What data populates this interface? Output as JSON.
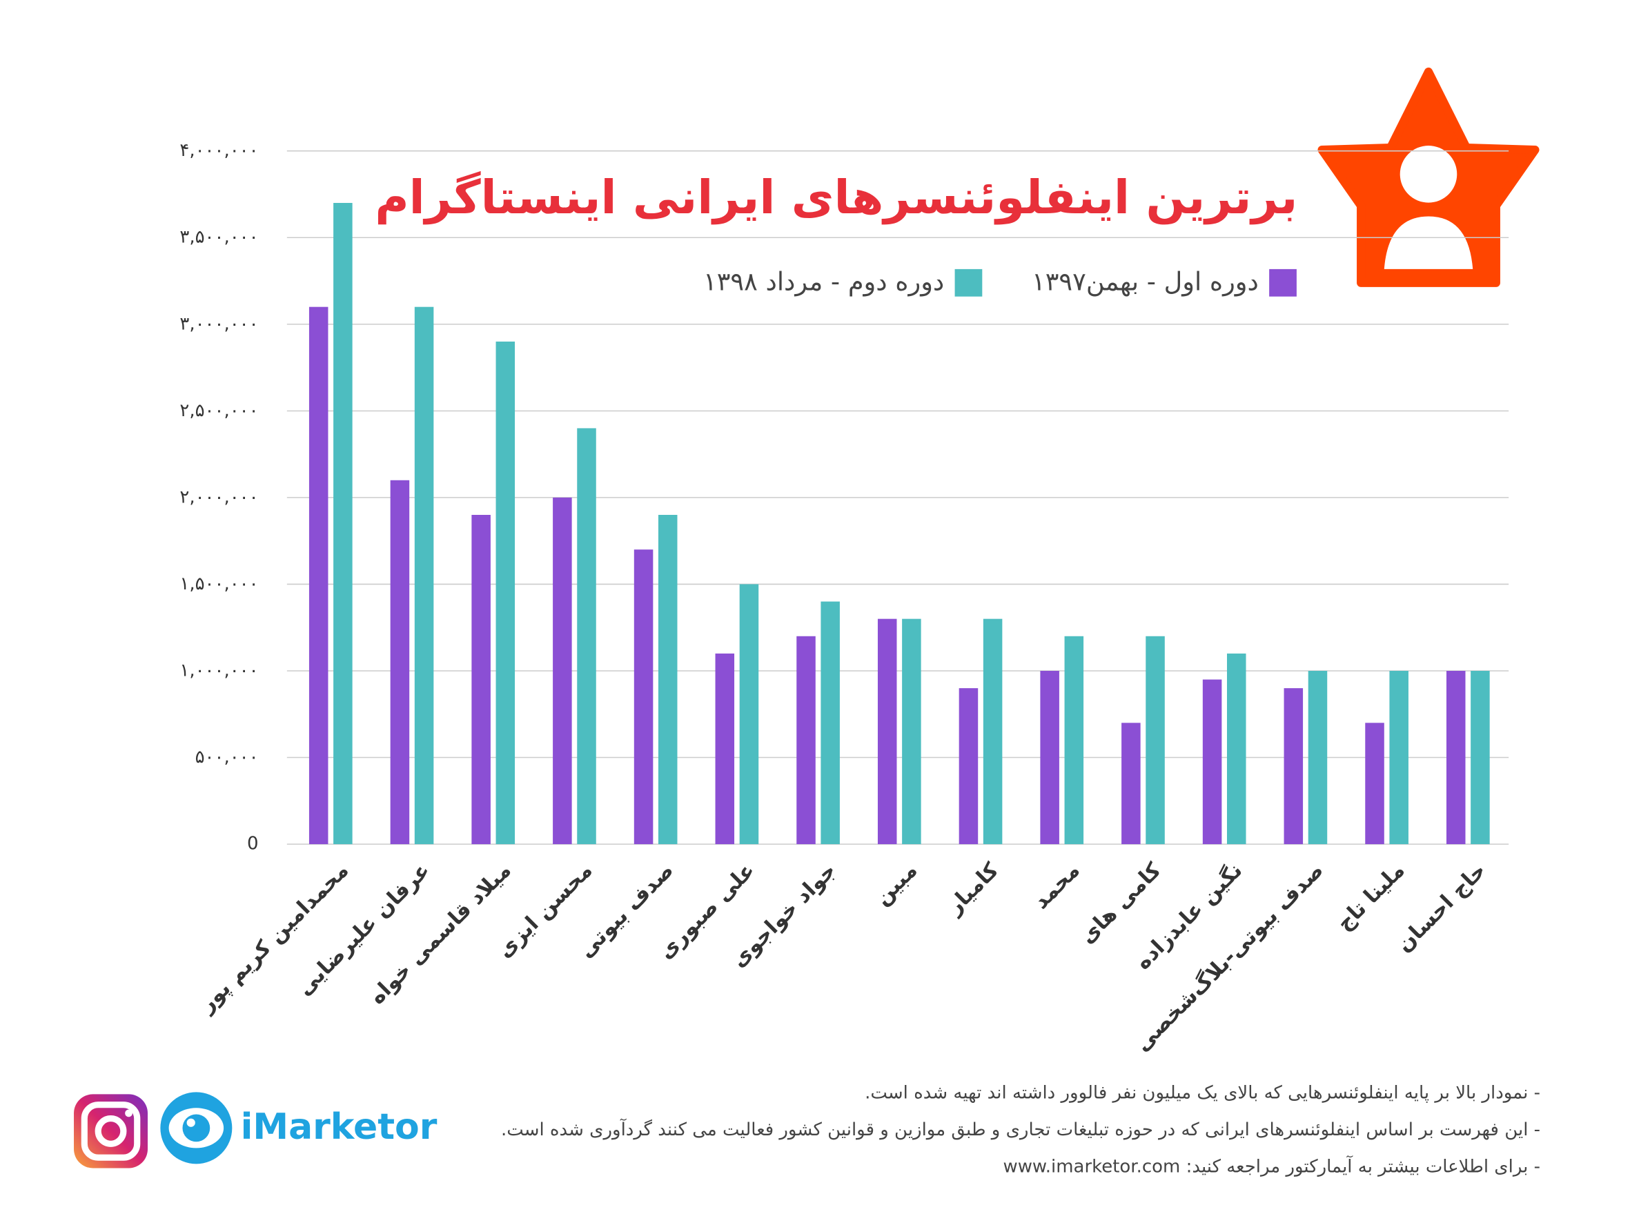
{
  "chart_data": {
    "type": "bar",
    "title": "برترین اینفلوئنسرهای ایرانی اینستاگرام",
    "categories": [
      "محمدامین کریم پور",
      "عرفان علیرضایی",
      "میلاد قاسمی خواه",
      "محسن ایزی",
      "صدف بیوتی",
      "علی صبوری",
      "جواد خواجوی",
      "مبین",
      "کامیار",
      "محمد",
      "کامی های",
      "نگین عابدزاده",
      "صدف بیوتی-بلاگ‌شخصی",
      "ملینا تاج",
      "حاج احسان"
    ],
    "series": [
      {
        "name": "دوره اول - بهمن۱۳۹۷",
        "color": "#8b4fd4",
        "values": [
          3100000,
          2100000,
          1900000,
          2000000,
          1700000,
          1100000,
          1200000,
          1300000,
          900000,
          1000000,
          700000,
          950000,
          900000,
          700000,
          1000000
        ]
      },
      {
        "name": "دوره دوم - مرداد ۱۳۹۸",
        "color": "#4dbdc0",
        "values": [
          3700000,
          3100000,
          2900000,
          2400000,
          1900000,
          1500000,
          1400000,
          1300000,
          1300000,
          1200000,
          1200000,
          1100000,
          1000000,
          1000000,
          1000000
        ]
      }
    ],
    "ylim": [
      0,
      4000000
    ],
    "yticks": [
      0,
      {
        "value": 500000,
        "label": "۵۰۰,۰۰۰"
      },
      {
        "value": 1000000,
        "label": "۱,۰۰۰,۰۰۰"
      },
      {
        "value": 1500000,
        "label": "۱,۵۰۰,۰۰۰"
      },
      {
        "value": 2000000,
        "label": "۲,۰۰۰,۰۰۰"
      },
      {
        "value": 2500000,
        "label": "۲,۵۰۰,۰۰۰"
      },
      {
        "value": 3000000,
        "label": "۳,۰۰۰,۰۰۰"
      },
      {
        "value": 3500000,
        "label": "۳,۵۰۰,۰۰۰"
      },
      {
        "value": 4000000,
        "label": "۴,۰۰۰,۰۰۰"
      }
    ],
    "grid": true,
    "title_color": "#e8303a"
  },
  "notes": [
    "- نمودار بالا بر پایه اینفلوئنسرهایی که بالای یک میلیون نفر فالوور داشته اند تهیه شده است.",
    "- این فهرست بر اساس اینفلوئنسرهای ایرانی که در حوزه تبلیغات تجاری و طبق موازین و قوانین کشور فعالیت می کنند گردآوری شده است.",
    "- برای اطلاعات بیشتر به آیمارکتور مراجعه کنید: www.imarketor.com"
  ],
  "brand": "iMarketor"
}
